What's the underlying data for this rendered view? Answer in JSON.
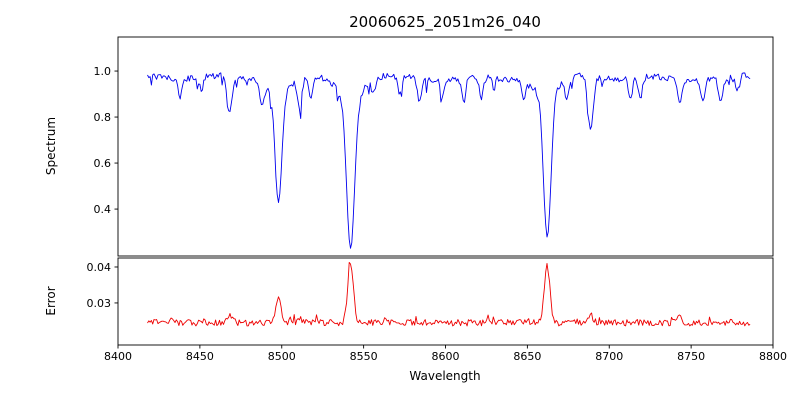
{
  "figure": {
    "title": "20060625_2051m26_040",
    "xlabel": "Wavelength",
    "background_color": "#ffffff",
    "frame_color": "#000000",
    "noise_seed": 2051
  },
  "axes": {
    "xlim": [
      8400,
      8800
    ],
    "xticks": [
      8400,
      8450,
      8500,
      8550,
      8600,
      8650,
      8700,
      8750,
      8800
    ]
  },
  "chart_data": [
    {
      "type": "line",
      "name": "spectrum",
      "color": "#0000ee",
      "ylabel": "Spectrum",
      "yticks": [
        0.4,
        0.6,
        0.8,
        1.0
      ],
      "ytick_labels": [
        "0.4",
        "0.6",
        "0.8",
        "1.0"
      ],
      "ylim": [
        0.196,
        1.148
      ],
      "x_data_range": [
        8418,
        8786
      ],
      "sample_step": 0.8,
      "baseline": 0.97,
      "noise": 0.013,
      "absorption_lines": [
        {
          "center": 8438,
          "depth": 0.08,
          "sigma": 1.2
        },
        {
          "center": 8451,
          "depth": 0.06,
          "sigma": 1.1
        },
        {
          "center": 8468,
          "depth": 0.17,
          "sigma": 1.5
        },
        {
          "center": 8488,
          "depth": 0.1,
          "sigma": 1.2
        },
        {
          "center": 8498.0,
          "depth": 0.48,
          "sigma": 2.0
        },
        {
          "center": 8511,
          "depth": 0.12,
          "sigma": 1.3
        },
        {
          "center": 8518,
          "depth": 0.09,
          "sigma": 1.2
        },
        {
          "center": 8542.1,
          "depth": 0.65,
          "sigma": 2.4
        },
        {
          "center": 8556,
          "depth": 0.06,
          "sigma": 1.1
        },
        {
          "center": 8572,
          "depth": 0.09,
          "sigma": 1.2
        },
        {
          "center": 8584,
          "depth": 0.1,
          "sigma": 1.3
        },
        {
          "center": 8598,
          "depth": 0.07,
          "sigma": 1.1
        },
        {
          "center": 8611,
          "depth": 0.1,
          "sigma": 1.2
        },
        {
          "center": 8622,
          "depth": 0.09,
          "sigma": 1.2
        },
        {
          "center": 8648,
          "depth": 0.07,
          "sigma": 1.1
        },
        {
          "center": 8662.1,
          "depth": 0.62,
          "sigma": 2.2
        },
        {
          "center": 8674,
          "depth": 0.08,
          "sigma": 1.2
        },
        {
          "center": 8688.6,
          "depth": 0.24,
          "sigma": 1.6
        },
        {
          "center": 8713,
          "depth": 0.08,
          "sigma": 1.2
        },
        {
          "center": 8719,
          "depth": 0.09,
          "sigma": 1.2
        },
        {
          "center": 8743,
          "depth": 0.11,
          "sigma": 1.3
        },
        {
          "center": 8757,
          "depth": 0.09,
          "sigma": 1.2
        },
        {
          "center": 8768,
          "depth": 0.1,
          "sigma": 1.3
        },
        {
          "center": 8778,
          "depth": 0.07,
          "sigma": 1.1
        }
      ],
      "broad_wings": [
        {
          "center": 8498.0,
          "depth": 0.06,
          "sigma": 6
        },
        {
          "center": 8542.1,
          "depth": 0.09,
          "sigma": 7
        },
        {
          "center": 8662.1,
          "depth": 0.08,
          "sigma": 7
        }
      ],
      "key_features": {
        "continuum_level": 0.97,
        "deep_line_minima": [
          {
            "wavelength": 8498,
            "min_value": 0.43
          },
          {
            "wavelength": 8542,
            "min_value": 0.23
          },
          {
            "wavelength": 8662,
            "min_value": 0.27
          },
          {
            "wavelength": 8689,
            "min_value": 0.73
          }
        ]
      }
    },
    {
      "type": "line",
      "name": "error",
      "color": "#ee0000",
      "ylabel": "Error",
      "yticks": [
        0.03,
        0.04
      ],
      "ytick_labels": [
        "0.03",
        "0.04"
      ],
      "ylim": [
        0.0183,
        0.0425
      ],
      "x_data_range": [
        8418,
        8786
      ],
      "sample_step": 0.8,
      "baseline": 0.0245,
      "noise": 0.0009,
      "peaks": [
        {
          "center": 8433,
          "height": 0.0012,
          "sigma": 1.3
        },
        {
          "center": 8468,
          "height": 0.0022,
          "sigma": 1.5
        },
        {
          "center": 8498.0,
          "height": 0.0068,
          "sigma": 1.6
        },
        {
          "center": 8511,
          "height": 0.0015,
          "sigma": 1.2
        },
        {
          "center": 8542.1,
          "height": 0.0168,
          "sigma": 1.7
        },
        {
          "center": 8662.1,
          "height": 0.0158,
          "sigma": 1.7
        },
        {
          "center": 8688.6,
          "height": 0.0022,
          "sigma": 1.4
        },
        {
          "center": 8743,
          "height": 0.0015,
          "sigma": 1.3
        }
      ],
      "key_features": {
        "baseline_level": 0.0245,
        "peak_maxima": [
          {
            "wavelength": 8498,
            "max_value": 0.031
          },
          {
            "wavelength": 8542,
            "max_value": 0.041
          },
          {
            "wavelength": 8662,
            "max_value": 0.04
          }
        ]
      }
    }
  ]
}
